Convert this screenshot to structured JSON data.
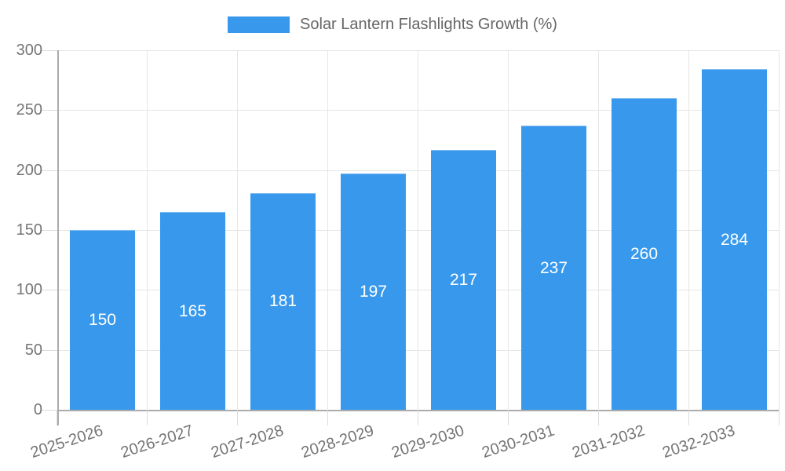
{
  "legend": {
    "label": "Solar Lantern Flashlights Growth (%)"
  },
  "chart_data": {
    "type": "bar",
    "title": "Solar Lantern Flashlights Growth (%)",
    "categories": [
      "2025-2026",
      "2026-2027",
      "2027-2028",
      "2028-2029",
      "2029-2030",
      "2030-2031",
      "2031-2032",
      "2032-2033"
    ],
    "values": [
      150,
      165,
      181,
      197,
      217,
      237,
      260,
      284
    ],
    "value_labels": [
      "150",
      "165",
      "181",
      "197",
      "217",
      "237",
      "260",
      "284"
    ],
    "xlabel": "",
    "ylabel": "",
    "ylim": [
      0,
      300
    ],
    "yticks": [
      0,
      50,
      100,
      150,
      200,
      250,
      300
    ],
    "grid": true,
    "legend_position": "top",
    "colors": {
      "bar": "#3899ec",
      "bar_value_text": "#ffffff",
      "gridline": "#e6e6e6",
      "axis_line": "#ababab",
      "tick_text": "#757575",
      "legend_text": "#666666"
    }
  }
}
